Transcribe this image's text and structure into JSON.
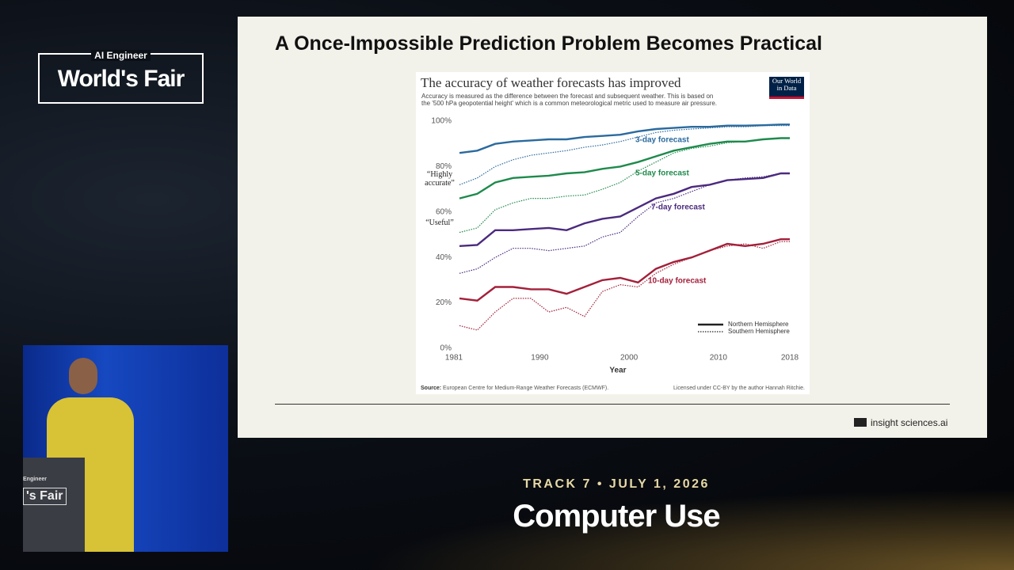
{
  "event": {
    "brand": "AI Engineer",
    "name": "World's Fair"
  },
  "video": {
    "podium_brand": "Engineer",
    "podium_name": "'s Fair"
  },
  "slide": {
    "title": "A Once-Impossible Prediction Problem Becomes Practical",
    "footer": "insight sciences.ai"
  },
  "session": {
    "track": "TRACK 7 • JULY 1, 2026",
    "name": "Computer Use"
  },
  "chart_data": {
    "type": "line",
    "title": "The accuracy of weather forecasts has improved",
    "subtitle": [
      "Accuracy is measured as the difference between the forecast and subsequent weather. This is based on",
      "the '500 hPa geopotential height' which is a common meteorological metric used to measure air pressure."
    ],
    "logo": "Our World in Data",
    "xlabel": "Year",
    "annotations": [
      "“Highly accurate”",
      "“Useful”"
    ],
    "source_label": "Source:",
    "source": "European Centre for Medium-Range Weather Forecasts (ECMWF).",
    "license": "Licensed under CC-BY by the author Hannah Ritchie.",
    "legend": [
      "Northern Hemisphere",
      "Southern Hemisphere"
    ],
    "x": [
      1981,
      1983,
      1985,
      1987,
      1989,
      1991,
      1993,
      1995,
      1997,
      1999,
      2001,
      2003,
      2005,
      2007,
      2009,
      2011,
      2013,
      2015,
      2017,
      2018
    ],
    "xlim": [
      1981,
      2018
    ],
    "xticks": [
      1981,
      1990,
      2000,
      2010,
      2018
    ],
    "ylim": [
      0,
      100
    ],
    "yticks": [
      {
        "value": 0,
        "label": "0%"
      },
      {
        "value": 20,
        "label": "20%"
      },
      {
        "value": 40,
        "label": "40%"
      },
      {
        "value": 60,
        "label": "60%"
      },
      {
        "value": 80,
        "label": "80%"
      },
      {
        "value": 100,
        "label": "100%"
      }
    ],
    "grid": false,
    "series": [
      {
        "name": "3-day forecast",
        "color": "#2a6a9e",
        "values": [
          86,
          87,
          90,
          91,
          91.5,
          92,
          92,
          93,
          93.5,
          94,
          95.5,
          96.5,
          97,
          97.5,
          97.5,
          98,
          98,
          98.2,
          98.5,
          98.5
        ],
        "southern_values": [
          72,
          75,
          80,
          83,
          85,
          86,
          87,
          88.5,
          89.5,
          91,
          93,
          95,
          96,
          96.5,
          97,
          97.5,
          97.5,
          98,
          98,
          98
        ]
      },
      {
        "name": "5-day forecast",
        "color": "#1e8a4c",
        "values": [
          66,
          68,
          73,
          75,
          75.5,
          76,
          77,
          77.5,
          79,
          80,
          82,
          84.5,
          87,
          88.5,
          90,
          91,
          91,
          92,
          92.5,
          92.5
        ],
        "southern_values": [
          51,
          53,
          61,
          64,
          66,
          66,
          67,
          67.5,
          70,
          73,
          78,
          82,
          86,
          88,
          89,
          90.5,
          91,
          92,
          92.5,
          92.5
        ]
      },
      {
        "name": "7-day forecast",
        "color": "#4b2a7e",
        "values": [
          45,
          45.5,
          52,
          52,
          52.5,
          53,
          52,
          55,
          57,
          58,
          62,
          66,
          68,
          71,
          72,
          74,
          74.5,
          75,
          77,
          77
        ],
        "southern_values": [
          33,
          35,
          40,
          44,
          44,
          43,
          44,
          45,
          49,
          51,
          58,
          64,
          66,
          69,
          72,
          74,
          75,
          75.5,
          77,
          77
        ]
      },
      {
        "name": "10-day forecast",
        "color": "#a3203a",
        "values": [
          22,
          21,
          27,
          27,
          26,
          26,
          24,
          27,
          30,
          31,
          29,
          35,
          38,
          40,
          43,
          46,
          45,
          46,
          48,
          48
        ],
        "southern_values": [
          10,
          8,
          16,
          22,
          22,
          16,
          18,
          14,
          25,
          28,
          27,
          33,
          37,
          40,
          43,
          45,
          46,
          44,
          47,
          47
        ]
      }
    ]
  }
}
